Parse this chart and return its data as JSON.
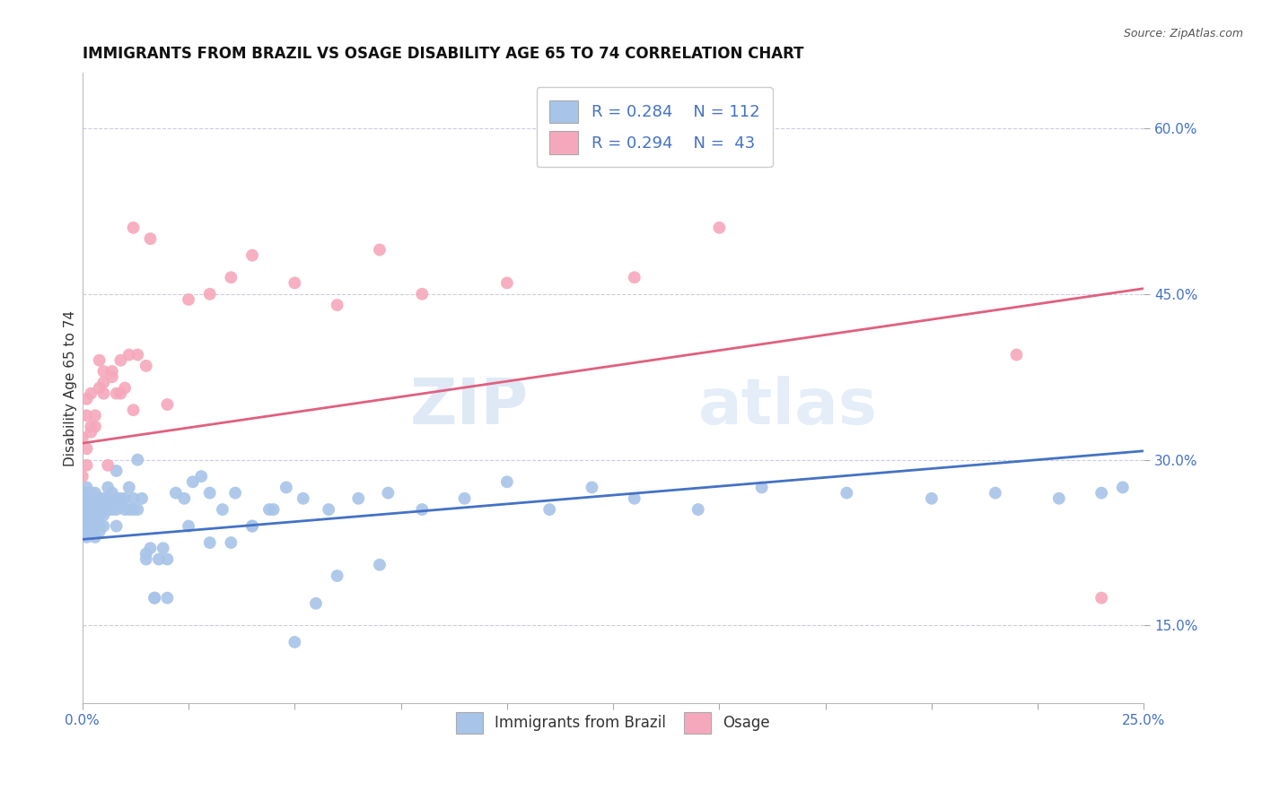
{
  "title": "IMMIGRANTS FROM BRAZIL VS OSAGE DISABILITY AGE 65 TO 74 CORRELATION CHART",
  "source": "Source: ZipAtlas.com",
  "ylabel": "Disability Age 65 to 74",
  "xlim": [
    0.0,
    0.25
  ],
  "ylim": [
    0.08,
    0.65
  ],
  "blue_color": "#a8c4e8",
  "pink_color": "#f5a8bc",
  "blue_line_color": "#4472c4",
  "pink_line_color": "#e06080",
  "background_color": "#ffffff",
  "grid_color": "#ccccdd",
  "legend_R_blue": "R = 0.284",
  "legend_N_blue": "N = 112",
  "legend_R_pink": "R = 0.294",
  "legend_N_pink": "N =  43",
  "blue_scatter_x": [
    0.0,
    0.0,
    0.0,
    0.0,
    0.0,
    0.0,
    0.0,
    0.0,
    0.001,
    0.001,
    0.001,
    0.001,
    0.001,
    0.001,
    0.001,
    0.001,
    0.001,
    0.001,
    0.002,
    0.002,
    0.002,
    0.002,
    0.002,
    0.002,
    0.002,
    0.002,
    0.003,
    0.003,
    0.003,
    0.003,
    0.003,
    0.003,
    0.003,
    0.003,
    0.004,
    0.004,
    0.004,
    0.004,
    0.004,
    0.004,
    0.005,
    0.005,
    0.005,
    0.005,
    0.005,
    0.006,
    0.006,
    0.006,
    0.007,
    0.007,
    0.007,
    0.008,
    0.008,
    0.008,
    0.009,
    0.009,
    0.01,
    0.01,
    0.011,
    0.011,
    0.012,
    0.012,
    0.013,
    0.014,
    0.015,
    0.016,
    0.017,
    0.018,
    0.019,
    0.02,
    0.022,
    0.024,
    0.026,
    0.028,
    0.03,
    0.033,
    0.036,
    0.04,
    0.044,
    0.048,
    0.052,
    0.058,
    0.065,
    0.072,
    0.08,
    0.09,
    0.1,
    0.11,
    0.12,
    0.13,
    0.145,
    0.16,
    0.18,
    0.2,
    0.215,
    0.23,
    0.24,
    0.245,
    0.008,
    0.013,
    0.015,
    0.017,
    0.02,
    0.025,
    0.03,
    0.035,
    0.04,
    0.045,
    0.05,
    0.055,
    0.06,
    0.07
  ],
  "blue_scatter_y": [
    0.255,
    0.26,
    0.25,
    0.265,
    0.245,
    0.24,
    0.27,
    0.235,
    0.255,
    0.26,
    0.25,
    0.265,
    0.24,
    0.27,
    0.275,
    0.245,
    0.23,
    0.235,
    0.255,
    0.26,
    0.25,
    0.265,
    0.24,
    0.27,
    0.245,
    0.235,
    0.255,
    0.26,
    0.25,
    0.265,
    0.24,
    0.27,
    0.245,
    0.23,
    0.255,
    0.26,
    0.25,
    0.265,
    0.24,
    0.235,
    0.255,
    0.26,
    0.25,
    0.265,
    0.24,
    0.255,
    0.265,
    0.275,
    0.255,
    0.26,
    0.27,
    0.255,
    0.265,
    0.24,
    0.26,
    0.265,
    0.255,
    0.265,
    0.255,
    0.275,
    0.255,
    0.265,
    0.255,
    0.265,
    0.215,
    0.22,
    0.175,
    0.21,
    0.22,
    0.175,
    0.27,
    0.265,
    0.28,
    0.285,
    0.27,
    0.255,
    0.27,
    0.24,
    0.255,
    0.275,
    0.265,
    0.255,
    0.265,
    0.27,
    0.255,
    0.265,
    0.28,
    0.255,
    0.275,
    0.265,
    0.255,
    0.275,
    0.27,
    0.265,
    0.27,
    0.265,
    0.27,
    0.275,
    0.29,
    0.3,
    0.21,
    0.175,
    0.21,
    0.24,
    0.225,
    0.225,
    0.24,
    0.255,
    0.135,
    0.17,
    0.195,
    0.205
  ],
  "pink_scatter_x": [
    0.0,
    0.0,
    0.001,
    0.001,
    0.001,
    0.001,
    0.002,
    0.002,
    0.002,
    0.003,
    0.003,
    0.004,
    0.004,
    0.005,
    0.005,
    0.005,
    0.006,
    0.007,
    0.007,
    0.008,
    0.009,
    0.009,
    0.01,
    0.011,
    0.012,
    0.013,
    0.015,
    0.016,
    0.02,
    0.025,
    0.03,
    0.035,
    0.04,
    0.05,
    0.06,
    0.07,
    0.08,
    0.1,
    0.13,
    0.15,
    0.22,
    0.24,
    0.012
  ],
  "pink_scatter_y": [
    0.285,
    0.32,
    0.355,
    0.295,
    0.34,
    0.31,
    0.33,
    0.325,
    0.36,
    0.33,
    0.34,
    0.365,
    0.39,
    0.36,
    0.38,
    0.37,
    0.295,
    0.375,
    0.38,
    0.36,
    0.39,
    0.36,
    0.365,
    0.395,
    0.345,
    0.395,
    0.385,
    0.5,
    0.35,
    0.445,
    0.45,
    0.465,
    0.485,
    0.46,
    0.44,
    0.49,
    0.45,
    0.46,
    0.465,
    0.51,
    0.395,
    0.175,
    0.51
  ],
  "blue_line_x": [
    0.0,
    0.25
  ],
  "blue_line_y": [
    0.228,
    0.308
  ],
  "pink_line_x": [
    0.0,
    0.25
  ],
  "pink_line_y": [
    0.315,
    0.455
  ],
  "watermark_zip": "ZIP",
  "watermark_atlas": "atlas",
  "title_fontsize": 12,
  "axis_label_fontsize": 11,
  "tick_fontsize": 11,
  "legend_fontsize": 13,
  "ytick_vals": [
    0.15,
    0.3,
    0.45,
    0.6
  ],
  "ytick_labels": [
    "15.0%",
    "30.0%",
    "45.0%",
    "60.0%"
  ]
}
